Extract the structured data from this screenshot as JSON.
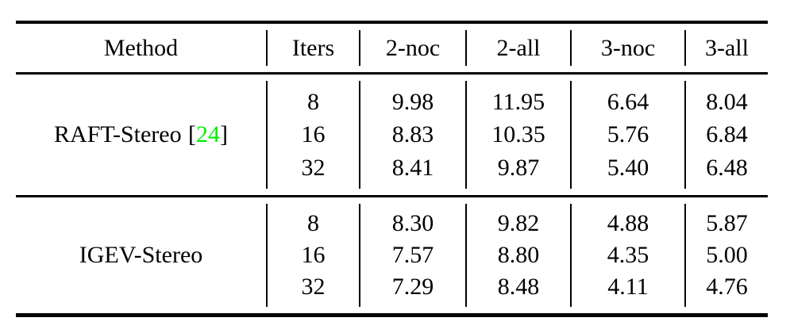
{
  "page": {
    "background": "#ffffff",
    "text_color": "#000000",
    "rule_color": "#000000"
  },
  "table": {
    "columns": [
      "Method",
      "Iters",
      "2-noc",
      "2-all",
      "3-noc",
      "3-all"
    ],
    "groups": [
      {
        "method": "RAFT-Stereo",
        "citation": {
          "open": "[",
          "number": "24",
          "close": "]"
        },
        "rows": [
          {
            "iters": "8",
            "cells": [
              "9.98",
              "11.95",
              "6.64",
              "8.04"
            ]
          },
          {
            "iters": "16",
            "cells": [
              "8.83",
              "10.35",
              "5.76",
              "6.84"
            ]
          },
          {
            "iters": "32",
            "cells": [
              "8.41",
              "9.87",
              "5.40",
              "6.48"
            ]
          }
        ]
      },
      {
        "method": "IGEV-Stereo",
        "rows": [
          {
            "iters": "8",
            "cells": [
              "8.30",
              "9.82",
              "4.88",
              "5.87"
            ]
          },
          {
            "iters": "16",
            "cells": [
              "7.57",
              "8.80",
              "4.35",
              "5.00"
            ]
          },
          {
            "iters": "32",
            "cells": [
              "7.29",
              "8.48",
              "4.11",
              "4.76"
            ]
          }
        ]
      }
    ],
    "colors": {
      "citation_green": "#00ee00"
    }
  }
}
